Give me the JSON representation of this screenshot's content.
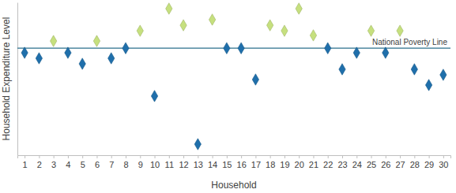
{
  "chart_data": {
    "type": "scatter",
    "x_label": "Household",
    "y_label": "Household Expenditure Level",
    "x": [
      1,
      2,
      3,
      4,
      5,
      6,
      7,
      8,
      9,
      10,
      11,
      12,
      13,
      14,
      15,
      16,
      17,
      18,
      19,
      20,
      21,
      22,
      23,
      24,
      25,
      26,
      27,
      28,
      29,
      30
    ],
    "values": [
      67,
      63.4,
      74.7,
      67,
      59.8,
      74.7,
      63.4,
      70,
      81.4,
      38.7,
      95.9,
      85,
      7.2,
      88.7,
      70,
      70,
      49.5,
      85,
      81.4,
      95.9,
      78.4,
      70,
      56.2,
      67,
      81.4,
      67,
      81.4,
      56.2,
      45.9,
      52.6
    ],
    "colors": [
      "#1f6fab",
      "#1f6fab",
      "#c6e07e",
      "#1f6fab",
      "#1f6fab",
      "#c6e07e",
      "#1f6fab",
      "#1f6fab",
      "#c6e07e",
      "#1f6fab",
      "#c6e07e",
      "#c6e07e",
      "#1f6fab",
      "#c6e07e",
      "#1f6fab",
      "#1f6fab",
      "#1f6fab",
      "#c6e07e",
      "#c6e07e",
      "#c6e07e",
      "#c6e07e",
      "#1f6fab",
      "#1f6fab",
      "#1f6fab",
      "#c6e07e",
      "#1f6fab",
      "#c6e07e",
      "#1f6fab",
      "#1f6fab",
      "#1f6fab"
    ],
    "marker": "diamond",
    "xlim": [
      0.5,
      30.5
    ],
    "xticks": [
      1,
      2,
      3,
      4,
      5,
      6,
      7,
      8,
      9,
      10,
      11,
      12,
      13,
      14,
      15,
      16,
      17,
      18,
      19,
      20,
      21,
      22,
      23,
      24,
      25,
      26,
      27,
      28,
      29,
      30
    ],
    "ylim": [
      0,
      100
    ],
    "yticks": [],
    "tick_labels": "x",
    "grid": false,
    "annotations": [
      {
        "text": "National Poverty Line",
        "y": 70,
        "color": "#2b6f8c"
      }
    ]
  }
}
